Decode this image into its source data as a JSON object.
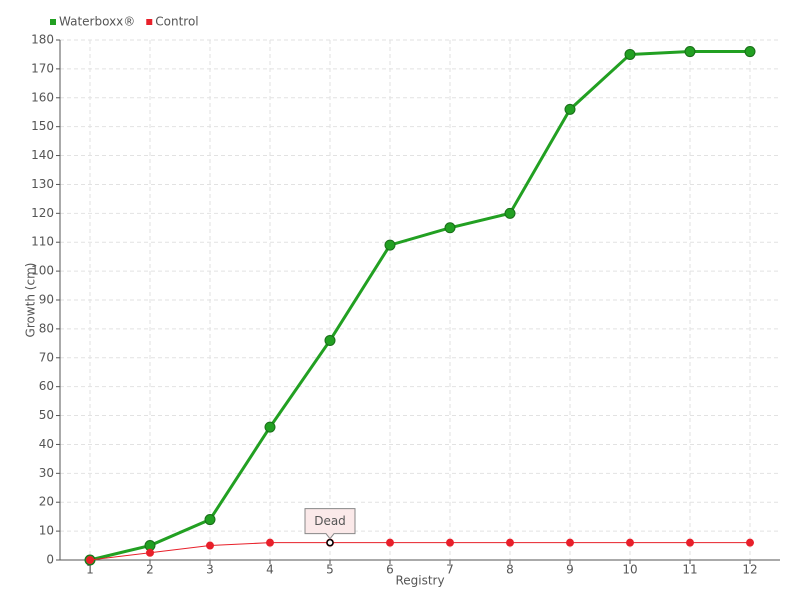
{
  "chart_data": {
    "type": "line",
    "x": [
      1,
      2,
      3,
      4,
      5,
      6,
      7,
      8,
      9,
      10,
      11,
      12
    ],
    "xlim": [
      0.5,
      12.5
    ],
    "xticks": [
      1,
      2,
      3,
      4,
      5,
      6,
      7,
      8,
      9,
      10,
      11,
      12
    ],
    "ylim": [
      0,
      180
    ],
    "yticks": [
      0,
      10,
      20,
      30,
      40,
      50,
      60,
      70,
      80,
      90,
      100,
      110,
      120,
      130,
      140,
      150,
      160,
      170,
      180
    ],
    "x_label": "Registry",
    "y_label": "Growth (cm)",
    "grid": true,
    "legend": "top-left",
    "series": [
      {
        "name": "Waterboxx®",
        "color": "#22a022",
        "values": [
          0,
          5,
          14,
          46,
          76,
          109,
          115,
          120,
          156,
          175,
          176,
          176
        ]
      },
      {
        "name": "Control",
        "color": "#e8202a",
        "values": [
          0,
          2.5,
          5,
          6,
          6,
          6,
          6,
          6,
          6,
          6,
          6,
          6
        ]
      }
    ],
    "annotations": [
      {
        "text": "Dead",
        "x": 5
      }
    ]
  }
}
